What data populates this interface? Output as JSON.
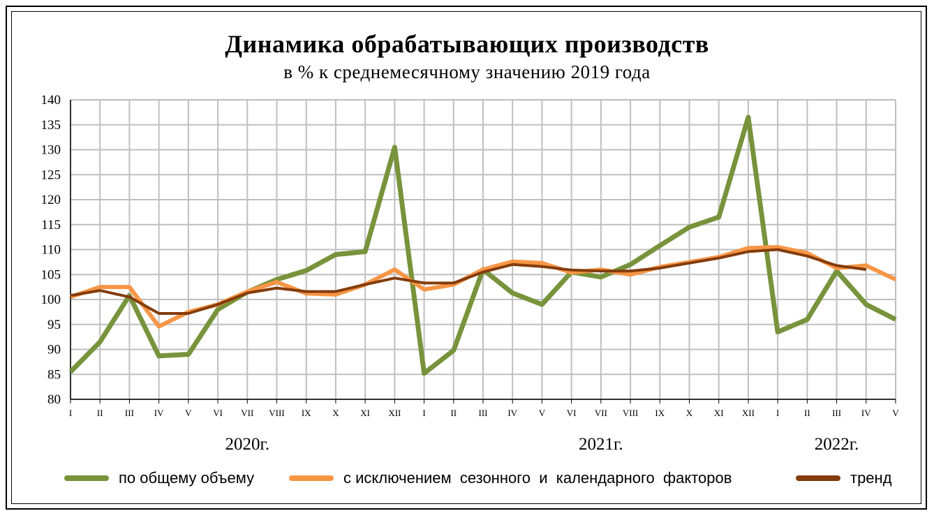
{
  "title": "Динамика обрабатывающих производств",
  "subtitle": "в % к среднемесячному значению 2019 года",
  "colors": {
    "total": "#77933C",
    "seasonal": "#F79646",
    "trend": "#843C0C",
    "grid": "#BFBFBF"
  },
  "years": [
    "2020г.",
    "2021г.",
    "2022г."
  ],
  "chart_data": {
    "type": "line",
    "title": "Динамика обрабатывающих производств",
    "subtitle": "в % к среднемесячному значению 2019 года",
    "ylim": [
      80,
      140
    ],
    "yticks": [
      80,
      85,
      90,
      95,
      100,
      105,
      110,
      115,
      120,
      125,
      130,
      135,
      140
    ],
    "grid": true,
    "legend_position": "bottom",
    "categories": [
      "I",
      "II",
      "III",
      "IV",
      "V",
      "VI",
      "VII",
      "VIII",
      "IX",
      "X",
      "XI",
      "XII",
      "I",
      "II",
      "III",
      "IV",
      "V",
      "VI",
      "VII",
      "VIII",
      "IX",
      "X",
      "XI",
      "XII",
      "I",
      "II",
      "III",
      "IV",
      "V"
    ],
    "year_labels": [
      "2020г.",
      "2021г.",
      "2022г."
    ],
    "series": [
      {
        "name": "по общему объему",
        "values": [
          85.5,
          91.5,
          100.8,
          88.7,
          89.0,
          98.0,
          101.5,
          104.0,
          105.8,
          109.0,
          109.6,
          130.5,
          85.2,
          89.8,
          106.0,
          101.3,
          99.0,
          105.5,
          104.5,
          107.0,
          110.8,
          114.5,
          116.5,
          136.5,
          93.5,
          96.0,
          105.7,
          99.0,
          96.0
        ]
      },
      {
        "name": "с исключением  сезонного  и  календарного  факторов",
        "values": [
          100.5,
          102.5,
          102.5,
          94.6,
          97.5,
          99.0,
          101.6,
          103.5,
          101.2,
          101.0,
          103.0,
          106.0,
          102.0,
          103.0,
          106.0,
          107.6,
          107.3,
          105.4,
          106.0,
          105.0,
          106.5,
          107.5,
          108.5,
          110.3,
          110.5,
          109.3,
          106.3,
          106.8,
          104.0
        ]
      },
      {
        "name": "тренд",
        "values": [
          100.8,
          101.8,
          100.5,
          97.2,
          97.2,
          99.0,
          101.3,
          102.3,
          101.6,
          101.6,
          103.0,
          104.3,
          103.3,
          103.3,
          105.5,
          107.0,
          106.6,
          105.9,
          105.7,
          105.7,
          106.3,
          107.3,
          108.3,
          109.6,
          110.0,
          108.7,
          106.8,
          106.0,
          null
        ]
      }
    ]
  }
}
